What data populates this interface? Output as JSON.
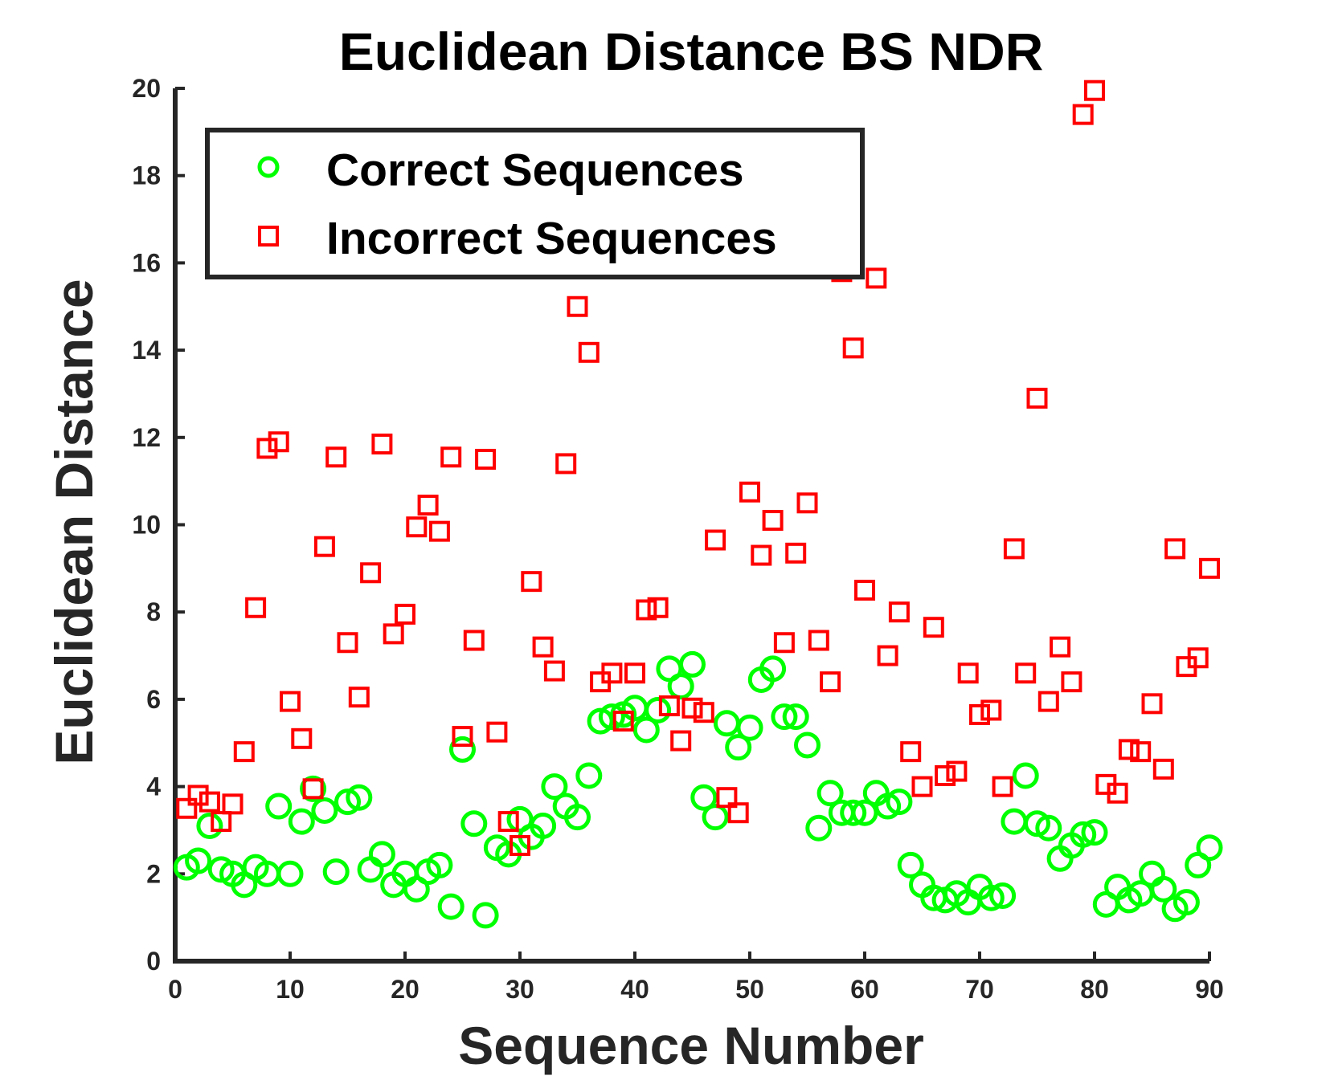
{
  "chart_data": {
    "type": "scatter",
    "title": "Euclidean Distance BS NDR",
    "xlabel": "Sequence Number",
    "ylabel": "Euclidean Distance",
    "xlim": [
      0,
      90
    ],
    "ylim": [
      0,
      20
    ],
    "xticks": [
      "0",
      "10",
      "20",
      "30",
      "40",
      "50",
      "60",
      "70",
      "80",
      "90"
    ],
    "yticks": [
      "0",
      "2",
      "4",
      "6",
      "8",
      "10",
      "12",
      "14",
      "16",
      "18",
      "20"
    ],
    "grid": false,
    "legend_position": "top-left",
    "series": [
      {
        "name": "Correct Sequences",
        "marker": "circle",
        "color": "#00ff00",
        "x": [
          1,
          2,
          3,
          4,
          5,
          6,
          7,
          8,
          9,
          10,
          11,
          12,
          13,
          14,
          15,
          16,
          17,
          18,
          19,
          20,
          21,
          22,
          23,
          24,
          25,
          26,
          27,
          28,
          29,
          30,
          31,
          32,
          33,
          34,
          35,
          36,
          37,
          38,
          39,
          40,
          41,
          42,
          43,
          44,
          45,
          46,
          47,
          48,
          49,
          50,
          51,
          52,
          53,
          54,
          55,
          56,
          57,
          58,
          59,
          60,
          61,
          62,
          63,
          64,
          65,
          66,
          67,
          68,
          69,
          70,
          71,
          72,
          73,
          74,
          75,
          76,
          77,
          78,
          79,
          80,
          81,
          82,
          83,
          84,
          85,
          86,
          87,
          88,
          89,
          90
        ],
        "y": [
          2.15,
          2.3,
          3.1,
          2.1,
          2.0,
          1.75,
          2.15,
          2.0,
          3.55,
          2.0,
          3.2,
          3.95,
          3.45,
          2.05,
          3.65,
          3.75,
          2.1,
          2.45,
          1.75,
          2.0,
          1.65,
          2.05,
          2.2,
          1.25,
          4.85,
          3.15,
          1.05,
          2.6,
          2.45,
          3.25,
          2.85,
          3.1,
          4.0,
          3.55,
          3.3,
          4.25,
          5.5,
          5.6,
          5.65,
          5.8,
          5.3,
          5.75,
          6.7,
          6.3,
          6.8,
          3.75,
          3.3,
          5.45,
          4.9,
          5.35,
          6.45,
          6.7,
          5.6,
          5.6,
          4.95,
          3.05,
          3.85,
          3.4,
          3.4,
          3.4,
          3.85,
          3.55,
          3.65,
          2.2,
          1.75,
          1.45,
          1.4,
          1.55,
          1.35,
          1.7,
          1.45,
          1.5,
          3.2,
          4.25,
          3.15,
          3.05,
          2.35,
          2.65,
          2.9,
          2.95,
          1.3,
          1.7,
          1.4,
          1.55,
          2.0,
          1.65,
          1.2,
          1.35,
          2.2,
          2.6
        ]
      },
      {
        "name": "Incorrect Sequences",
        "marker": "square",
        "color": "#ff0000",
        "x": [
          1,
          2,
          3,
          4,
          5,
          6,
          7,
          8,
          9,
          10,
          11,
          12,
          13,
          14,
          15,
          16,
          17,
          18,
          19,
          20,
          21,
          22,
          23,
          24,
          25,
          26,
          27,
          28,
          29,
          30,
          31,
          32,
          33,
          34,
          35,
          36,
          37,
          38,
          39,
          40,
          41,
          42,
          43,
          44,
          45,
          46,
          47,
          48,
          49,
          50,
          51,
          52,
          53,
          54,
          55,
          56,
          57,
          58,
          59,
          60,
          61,
          62,
          63,
          64,
          65,
          66,
          67,
          68,
          69,
          70,
          71,
          72,
          73,
          74,
          75,
          76,
          77,
          78,
          79,
          80,
          81,
          82,
          83,
          84,
          85,
          86,
          87,
          88,
          89,
          90
        ],
        "y": [
          3.5,
          3.8,
          3.65,
          3.2,
          3.6,
          4.8,
          8.1,
          11.75,
          11.9,
          5.95,
          5.1,
          3.95,
          9.5,
          11.55,
          7.3,
          6.05,
          8.9,
          11.85,
          7.5,
          7.95,
          9.95,
          10.45,
          9.85,
          11.55,
          5.15,
          7.35,
          11.5,
          5.25,
          3.2,
          2.65,
          8.7,
          7.2,
          6.65,
          11.4,
          15.0,
          13.95,
          6.4,
          6.6,
          5.5,
          6.6,
          8.05,
          8.1,
          5.85,
          5.05,
          5.8,
          5.7,
          9.65,
          3.75,
          3.4,
          10.75,
          9.3,
          10.1,
          7.3,
          9.35,
          10.5,
          7.35,
          6.4,
          15.8,
          14.05,
          8.5,
          15.65,
          7.0,
          8.0,
          4.8,
          4.0,
          7.65,
          4.25,
          4.35,
          6.6,
          5.65,
          5.75,
          4.0,
          9.45,
          6.6,
          12.9,
          5.95,
          7.2,
          6.4,
          19.4,
          19.95,
          4.05,
          3.85,
          4.85,
          4.8,
          5.9,
          4.4,
          9.45,
          6.75,
          6.95,
          9.0
        ]
      }
    ]
  }
}
